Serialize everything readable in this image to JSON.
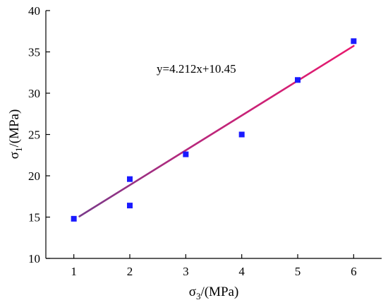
{
  "chart_data": {
    "type": "scatter",
    "title": "",
    "xlabel": {
      "base": "σ",
      "sub": "3",
      "rest": "/(MPa)"
    },
    "ylabel": {
      "base": "σ",
      "sub": "1",
      "rest": "/(MPa)"
    },
    "xlim": [
      0.5,
      6.5
    ],
    "ylim": [
      10,
      40
    ],
    "xticks": [
      1,
      2,
      3,
      4,
      5,
      6
    ],
    "yticks": [
      10,
      15,
      20,
      25,
      30,
      35,
      40
    ],
    "grid": false,
    "legend": "none",
    "series": [
      {
        "marker": "square",
        "color": "#1a1aff",
        "points": [
          {
            "x": 1,
            "y": 14.8
          },
          {
            "x": 2,
            "y": 19.6
          },
          {
            "x": 2,
            "y": 16.4
          },
          {
            "x": 3,
            "y": 22.6
          },
          {
            "x": 4,
            "y": 25.0
          },
          {
            "x": 5,
            "y": 31.6
          },
          {
            "x": 6,
            "y": 36.3
          }
        ]
      }
    ],
    "fit_line": {
      "slope": 4.212,
      "intercept": 10.45,
      "x_range": [
        1.1,
        6
      ],
      "color": "#e8196e",
      "start_color": "#7a3a8a"
    },
    "annotation": "y=4.212x+10.45"
  }
}
